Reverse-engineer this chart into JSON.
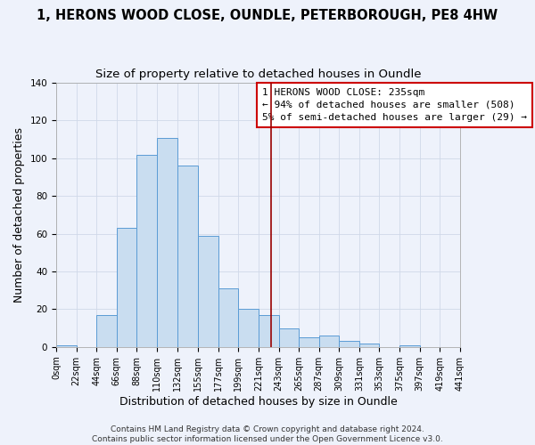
{
  "title": "1, HERONS WOOD CLOSE, OUNDLE, PETERBOROUGH, PE8 4HW",
  "subtitle": "Size of property relative to detached houses in Oundle",
  "xlabel": "Distribution of detached houses by size in Oundle",
  "ylabel": "Number of detached properties",
  "bar_edges": [
    0,
    22,
    44,
    66,
    88,
    110,
    132,
    155,
    177,
    199,
    221,
    243,
    265,
    287,
    309,
    331,
    353,
    375,
    397,
    419,
    441
  ],
  "bar_heights": [
    1,
    0,
    17,
    63,
    102,
    111,
    96,
    59,
    31,
    20,
    17,
    10,
    5,
    6,
    3,
    2,
    0,
    1,
    0,
    0
  ],
  "bar_color": "#c9ddf0",
  "bar_edge_color": "#5b9bd5",
  "reference_line_x": 235,
  "reference_line_color": "#990000",
  "ylim": [
    0,
    140
  ],
  "xlim": [
    0,
    441
  ],
  "tick_labels": [
    "0sqm",
    "22sqm",
    "44sqm",
    "66sqm",
    "88sqm",
    "110sqm",
    "132sqm",
    "155sqm",
    "177sqm",
    "199sqm",
    "221sqm",
    "243sqm",
    "265sqm",
    "287sqm",
    "309sqm",
    "331sqm",
    "353sqm",
    "375sqm",
    "397sqm",
    "419sqm",
    "441sqm"
  ],
  "yticks": [
    0,
    20,
    40,
    60,
    80,
    100,
    120,
    140
  ],
  "grid_color": "#d0d8e8",
  "background_color": "#eef2fb",
  "legend_line1": "1 HERONS WOOD CLOSE: 235sqm",
  "legend_line2": "← 94% of detached houses are smaller (508)",
  "legend_line3": "5% of semi-detached houses are larger (29) →",
  "legend_box_color": "#ffffff",
  "legend_box_edge_color": "#cc0000",
  "footer_line1": "Contains HM Land Registry data © Crown copyright and database right 2024.",
  "footer_line2": "Contains public sector information licensed under the Open Government Licence v3.0.",
  "title_fontsize": 10.5,
  "subtitle_fontsize": 9.5,
  "axis_label_fontsize": 9,
  "tick_fontsize": 7,
  "legend_fontsize": 8,
  "footer_fontsize": 6.5
}
